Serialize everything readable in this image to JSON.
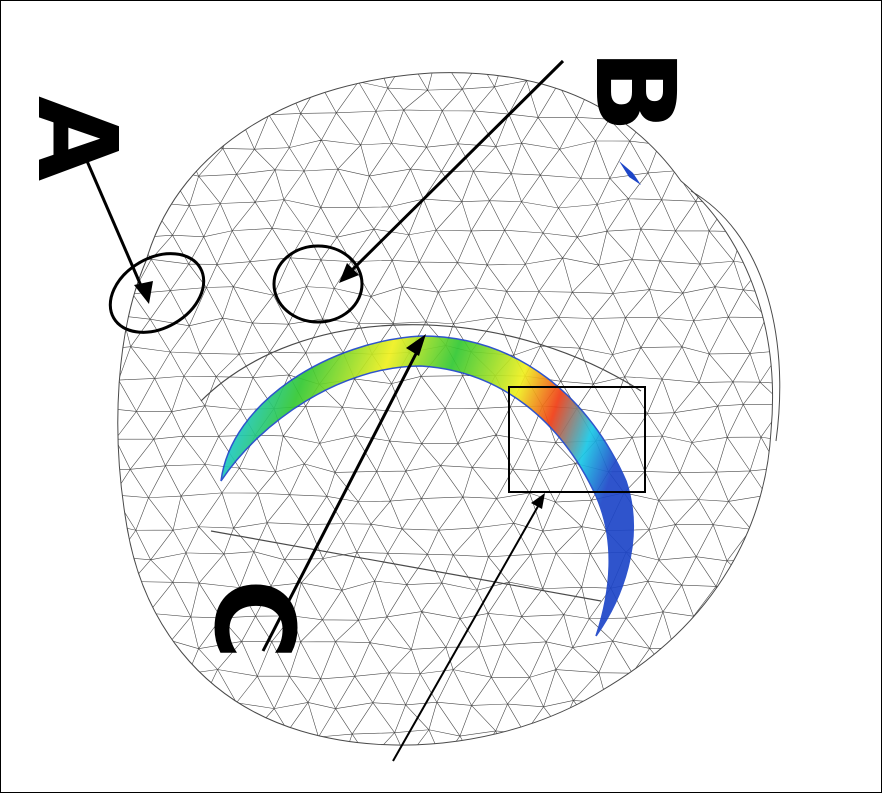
{
  "labels": {
    "a": "A",
    "b": "B",
    "c": "C"
  },
  "colors": {
    "mesh": "#4a4a4a",
    "annotation": "#000000",
    "band_low": "#1e46c8",
    "band_cyan": "#19c8e6",
    "band_green": "#32c832",
    "band_yellow": "#f0f01e",
    "band_high": "#f03c14"
  },
  "icons": {
    "mesh": "triangular-finite-element-mesh",
    "contour": "stress-contour-band"
  }
}
